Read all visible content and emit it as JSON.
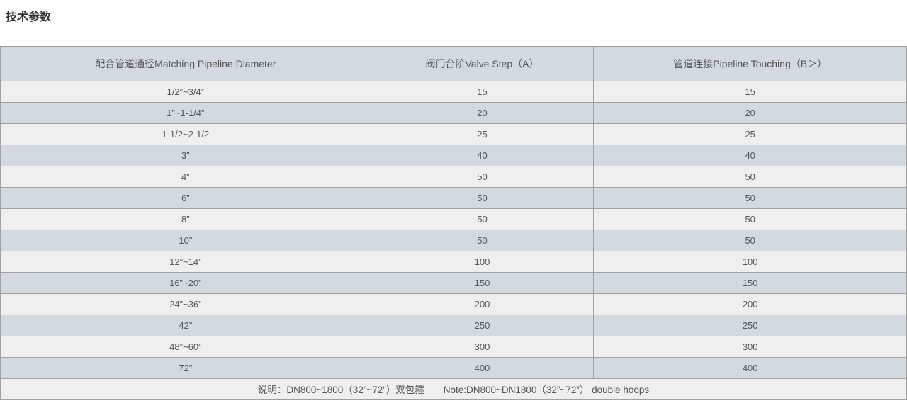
{
  "page": {
    "title": "技术参数"
  },
  "table": {
    "headers": [
      "配合管道通径Matching Pipeline Diameter",
      "阀门台阶Valve Step（A）",
      "管道连接Pipeline Touching（B＞）"
    ],
    "rows": [
      [
        "1/2”~3/4”",
        "15",
        "15"
      ],
      [
        "1”~1-1/4”",
        "20",
        "20"
      ],
      [
        "1-1/2~2-1/2",
        "25",
        "25"
      ],
      [
        "3”",
        "40",
        "40"
      ],
      [
        "4”",
        "50",
        "50"
      ],
      [
        "6”",
        "50",
        "50"
      ],
      [
        "8”",
        "50",
        "50"
      ],
      [
        "10”",
        "50",
        "50"
      ],
      [
        "12”~14”",
        "100",
        "100"
      ],
      [
        "16”~20”",
        "150",
        "150"
      ],
      [
        "24”~36”",
        "200",
        "200"
      ],
      [
        "42”",
        "250",
        "250"
      ],
      [
        "48”~60”",
        "300",
        "300"
      ],
      [
        "72”",
        "400",
        "400"
      ]
    ],
    "note": "说明：DN800~1800（32”~72”）双包箍　　Note:DN800~DN1800（32”~72”） double hoops"
  },
  "colors": {
    "header_bg": "#d2d9e0",
    "row_alt_bg": "#d2d9e0",
    "row_bg": "#efefef",
    "border": "#a0a0a0",
    "text": "#555555",
    "title_text": "#333333"
  }
}
